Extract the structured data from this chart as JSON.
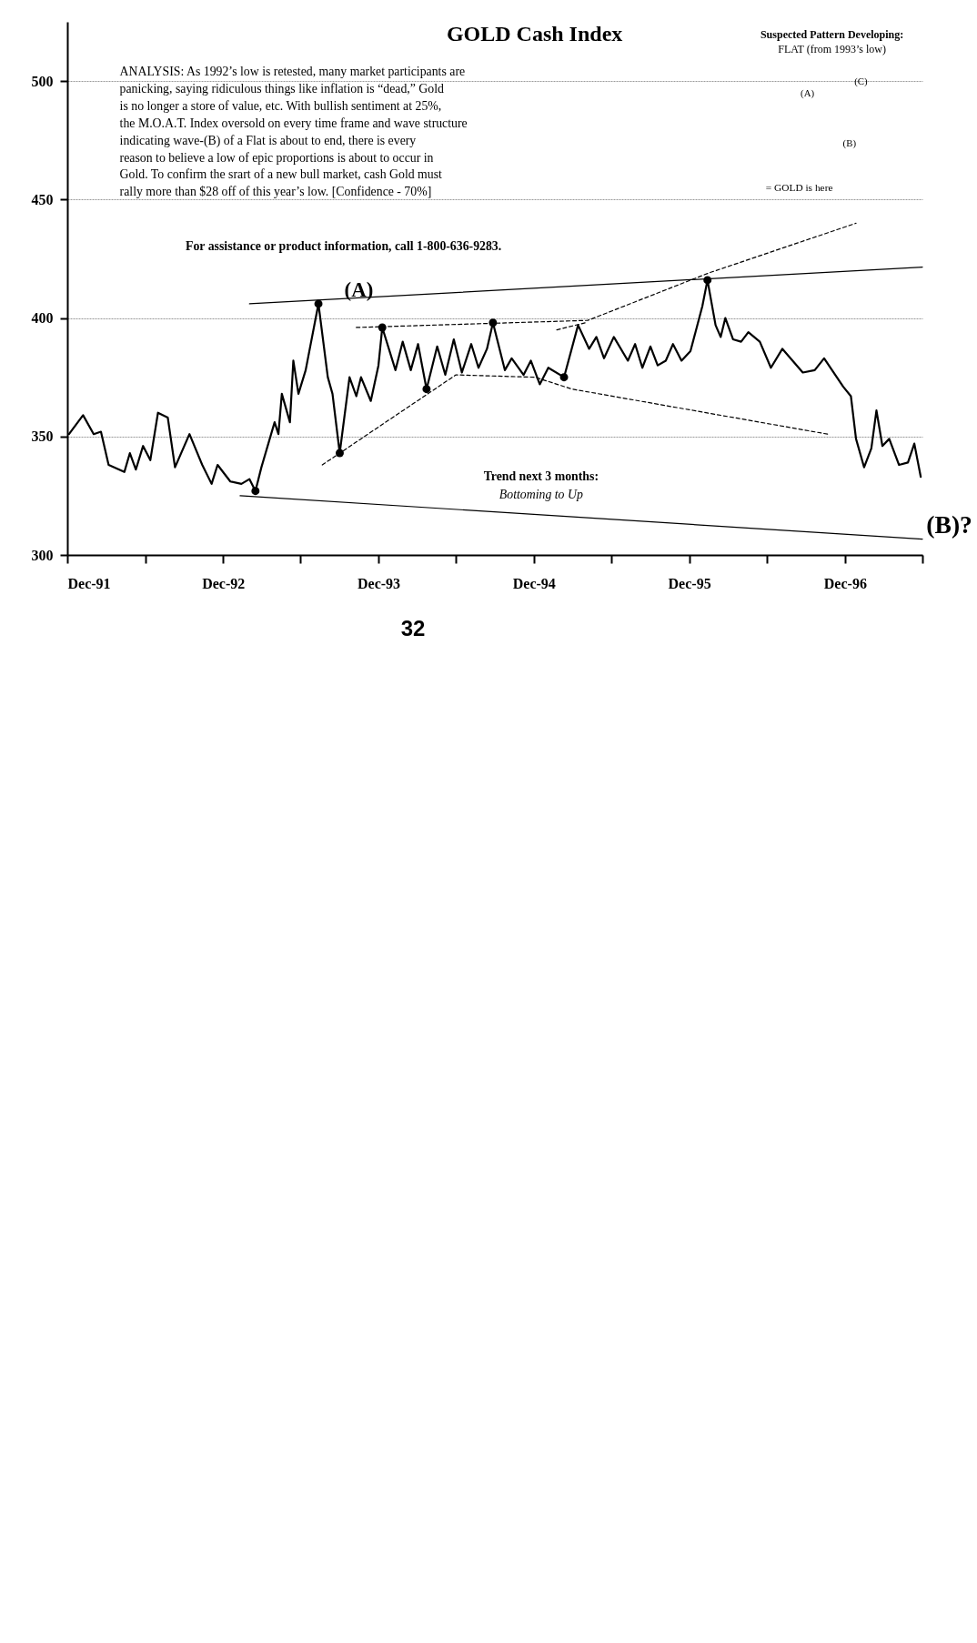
{
  "chart_data": {
    "type": "line",
    "title": "GOLD Cash Index",
    "annotations": [
      "ANALYSIS: As 1992’s low is retested, many market participants are panicking, saying ridiculous things like inflation is “dead,” Gold is no longer a store of value, etc. With bullish sentiment at 25%, the M.O.A.T. Index oversold on every time frame and wave structure indicating wave-(B) of a Flat is about to end, there is every reason to believe a low of epic proportions is about to occur in Gold. To confirm the srart of a new bull market, cash Gold must rally more than $28 off of this year’s low. [Confidence - 70%]",
      "For assistance or product information, call 1-800-636-9283.",
      "Trend next 3 months:",
      "Bottoming to Up",
      "Suspected Pattern Developing:",
      "FLAT (from 1993’s low)",
      "(A)",
      "(C)",
      "(B)",
      "= GOLD is here",
      "(B)?",
      "32",
      "(A)"
    ],
    "xlim": [
      "1991-12-01",
      "1997-06-01"
    ],
    "xticks": [
      {
        "value": "1991-12-01",
        "label": "Dec-91"
      },
      {
        "value": "1992-06-01",
        "label": null
      },
      {
        "value": "1992-12-01",
        "label": "Dec-92"
      },
      {
        "value": "1993-06-01",
        "label": null
      },
      {
        "value": "1993-12-01",
        "label": "Dec-93"
      },
      {
        "value": "1994-06-01",
        "label": null
      },
      {
        "value": "1994-12-01",
        "label": "Dec-94"
      },
      {
        "value": "1995-06-01",
        "label": null
      },
      {
        "value": "1995-12-01",
        "label": "Dec-95"
      },
      {
        "value": "1996-06-01",
        "label": null
      },
      {
        "value": "1996-12-01",
        "label": "Dec-96"
      },
      {
        "value": "1997-06-01",
        "label": null
      }
    ],
    "ylim": [
      300,
      525
    ],
    "yticks": [
      300,
      350,
      400,
      450,
      500
    ],
    "grid": "y",
    "series": [
      {
        "color": "#000000",
        "line_style": "solid",
        "x": [
          "1991-12-05",
          "1992-01-07",
          "1992-02-01",
          "1992-02-18",
          "1992-03-07",
          "1992-04-13",
          "1992-04-26",
          "1992-05-10",
          "1992-05-27",
          "1992-06-13",
          "1992-07-01",
          "1992-07-24",
          "1992-08-10",
          "1992-09-13",
          "1992-10-13",
          "1992-11-04",
          "1992-11-18",
          "1992-12-18",
          "1993-01-13",
          "1993-02-01",
          "1993-02-15",
          "1993-03-01",
          "1993-04-01",
          "1993-04-10",
          "1993-04-18",
          "1993-05-07",
          "1993-05-15",
          "1993-05-27",
          "1993-06-13",
          "1993-07-13",
          "1993-08-04",
          "1993-08-15",
          "1993-09-01",
          "1993-09-24",
          "1993-10-10",
          "1993-10-21",
          "1993-11-13",
          "1993-12-01",
          "1993-12-10",
          "1994-01-10",
          "1994-01-27",
          "1994-02-15",
          "1994-03-04",
          "1994-03-24",
          "1994-04-18",
          "1994-05-07",
          "1994-05-27",
          "1994-06-15",
          "1994-07-07",
          "1994-07-24",
          "1994-08-13",
          "1994-08-27",
          "1994-09-24",
          "1994-10-10",
          "1994-11-07",
          "1994-11-24",
          "1994-12-15",
          "1995-01-04",
          "1995-02-10",
          "1995-03-15",
          "1995-04-10",
          "1995-04-27",
          "1995-05-15",
          "1995-06-07",
          "1995-07-10",
          "1995-07-27",
          "1995-08-13",
          "1995-09-01",
          "1995-09-18",
          "1995-10-07",
          "1995-10-24",
          "1995-11-13",
          "1995-12-04",
          "1996-01-01",
          "1996-01-13",
          "1996-02-01",
          "1996-02-13",
          "1996-02-24",
          "1996-03-13",
          "1996-04-01",
          "1996-04-18",
          "1996-05-15",
          "1996-06-10",
          "1996-07-07",
          "1996-08-24",
          "1996-09-21",
          "1996-10-13",
          "1996-11-27",
          "1996-12-15",
          "1996-12-27",
          "1997-01-15",
          "1997-02-01",
          "1997-02-13",
          "1997-02-27",
          "1997-03-15",
          "1997-04-07",
          "1997-04-28",
          "1997-05-13",
          "1997-05-28"
        ],
        "values": [
          351,
          359,
          351,
          352,
          338,
          335,
          343,
          336,
          346,
          340,
          360,
          358,
          337,
          351,
          338,
          330,
          338,
          331,
          330,
          332,
          327,
          337,
          356,
          351,
          368,
          356,
          382,
          368,
          378,
          406,
          375,
          368,
          343,
          375,
          367,
          375,
          365,
          380,
          396,
          378,
          390,
          378,
          389,
          370,
          388,
          376,
          391,
          377,
          389,
          379,
          387,
          398,
          378,
          383,
          376,
          382,
          372,
          379,
          375,
          397,
          387,
          392,
          383,
          392,
          382,
          389,
          379,
          388,
          380,
          382,
          389,
          382,
          386,
          405,
          416,
          397,
          392,
          400,
          391,
          390,
          394,
          390,
          379,
          387,
          377,
          378,
          383,
          371,
          367,
          349,
          337,
          345,
          361,
          346,
          349,
          338,
          339,
          347,
          333
        ]
      },
      {
        "type": "scatter",
        "color": "#000000",
        "marker": "circle",
        "x": [
          "1993-02-15",
          "1993-07-13",
          "1993-09-01",
          "1993-12-10",
          "1994-03-24",
          "1994-08-27",
          "1995-02-10",
          "1996-01-13"
        ],
        "values": [
          327,
          406,
          343,
          396,
          370,
          398,
          375,
          416
        ]
      },
      {
        "type": "line",
        "color": "#000000",
        "line_style": "solid",
        "x": [
          "1993-02-01",
          "1997-06-01"
        ],
        "values": [
          406,
          421.5
        ]
      },
      {
        "type": "line",
        "color": "#000000",
        "line_style": "solid",
        "x": [
          "1993-01-10",
          "1997-06-01"
        ],
        "values": [
          325,
          306.7
        ]
      },
      {
        "type": "line",
        "color": "#000000",
        "line_style": "dashed",
        "x": [
          "1993-07-22",
          "1994-06-01",
          "1994-12-04",
          "1995-03-01",
          "1996-10-21"
        ],
        "values": [
          338,
          376,
          375,
          370,
          351
        ]
      },
      {
        "type": "line",
        "color": "#000000",
        "line_style": "dashed",
        "x": [
          "1993-10-10",
          "1995-04-07",
          "1996-01-16",
          "1996-12-27"
        ],
        "values": [
          396,
          399,
          419,
          440
        ]
      },
      {
        "type": "line",
        "color": "#000000",
        "line_style": "dashed",
        "x": [
          "1995-01-24",
          "1995-04-01"
        ],
        "values": [
          395,
          398
        ]
      }
    ]
  }
}
